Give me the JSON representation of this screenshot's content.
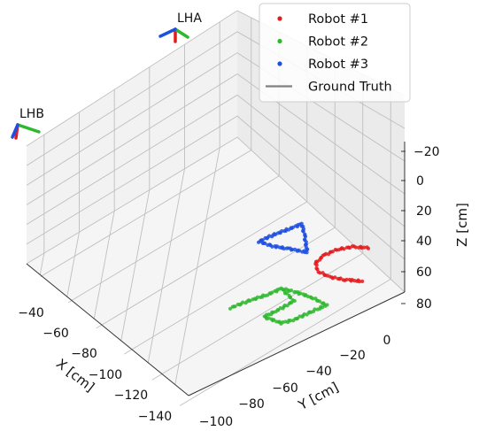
{
  "chart_data": {
    "type": "scatter3d",
    "title": "",
    "xlabel": "X [cm]",
    "ylabel": "Y [cm]",
    "zlabel": "Z [cm]",
    "x_ticks": [
      "−40",
      "−60",
      "−80",
      "−100",
      "−120",
      "−140"
    ],
    "y_ticks": [
      "−100",
      "−80",
      "−60",
      "−40",
      "−20",
      "0"
    ],
    "z_ticks": [
      "−20",
      "0",
      "20",
      "40",
      "60",
      "80"
    ],
    "grid": true,
    "legend_position": "top-right",
    "legend": [
      {
        "label": "Robot #1",
        "color": "#e41a1c",
        "kind": "dot"
      },
      {
        "label": "Robot #2",
        "color": "#2eb82e",
        "kind": "dot"
      },
      {
        "label": "Robot #3",
        "color": "#1f4fe0",
        "kind": "dot"
      },
      {
        "label": "Ground Truth",
        "color": "#808080",
        "kind": "line"
      }
    ],
    "lighthouses": [
      {
        "label": "LHA"
      },
      {
        "label": "LHB"
      }
    ],
    "series": [
      {
        "name": "Robot #1",
        "color": "#e41a1c",
        "shape": "arc"
      },
      {
        "name": "Robot #2",
        "color": "#2eb82e",
        "shape": "loop"
      },
      {
        "name": "Robot #3",
        "color": "#1f4fe0",
        "shape": "triangle"
      }
    ]
  }
}
